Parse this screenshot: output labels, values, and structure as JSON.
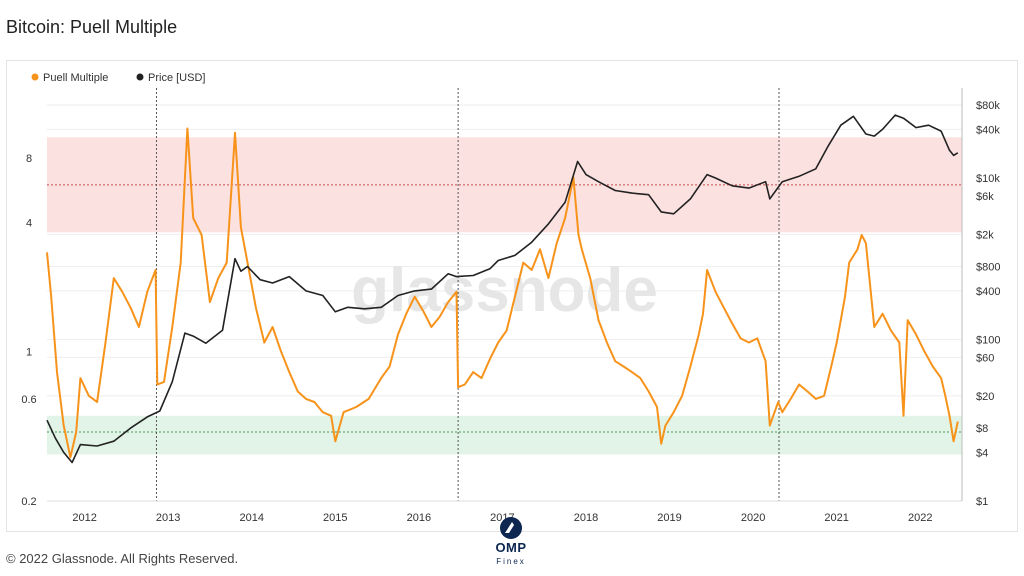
{
  "page": {
    "title": "Bitcoin: Puell Multiple",
    "footer": "© 2022 Glassnode. All Rights Reserved.",
    "watermark": "glassnode",
    "logo_text": "OMP",
    "logo_sub": "Finex"
  },
  "colors": {
    "puell": "#f7931a",
    "price": "#222222",
    "sell_zone": "#fbdcdc",
    "buy_zone": "#dff3e4",
    "grid": "#eeeeee",
    "halving_line": "#555555"
  },
  "chart_data": {
    "type": "line",
    "title": "Bitcoin: Puell Multiple",
    "legend": [
      "Puell Multiple",
      "Price [USD]"
    ],
    "legend_position": "top-left",
    "x_ticks": [
      "2012",
      "2013",
      "2014",
      "2015",
      "2016",
      "2017",
      "2018",
      "2019",
      "2020",
      "2021",
      "2022"
    ],
    "y_left_ticks": [
      {
        "value": 8,
        "label": "8"
      },
      {
        "value": 4,
        "label": "4"
      },
      {
        "value": 1,
        "label": "1"
      },
      {
        "value": 0.6,
        "label": "0.6"
      },
      {
        "value": 0.2,
        "label": "0.2"
      }
    ],
    "y_left_scale": "log",
    "y_left_range": [
      0.2,
      17
    ],
    "y_right_ticks": [
      {
        "value": 80000,
        "label": "$80k"
      },
      {
        "value": 40000,
        "label": "$40k"
      },
      {
        "value": 10000,
        "label": "$10k"
      },
      {
        "value": 6000,
        "label": "$6k"
      },
      {
        "value": 2000,
        "label": "$2k"
      },
      {
        "value": 800,
        "label": "$800"
      },
      {
        "value": 400,
        "label": "$400"
      },
      {
        "value": 100,
        "label": "$100"
      },
      {
        "value": 60,
        "label": "$60"
      },
      {
        "value": 20,
        "label": "$20"
      },
      {
        "value": 8,
        "label": "$8"
      },
      {
        "value": 4,
        "label": "$4"
      },
      {
        "value": 1,
        "label": "$1"
      }
    ],
    "y_right_scale": "log",
    "sell_zone": [
      3.6,
      10
    ],
    "sell_line": 6,
    "buy_zone": [
      0.33,
      0.5
    ],
    "buy_line": 0.42,
    "halvings": [
      2012.91,
      2016.52,
      2020.36
    ],
    "series": [
      {
        "name": "Puell Multiple",
        "x": [
          2011.6,
          2011.65,
          2011.72,
          2011.8,
          2011.88,
          2011.95,
          2012.0,
          2012.1,
          2012.2,
          2012.3,
          2012.4,
          2012.5,
          2012.6,
          2012.7,
          2012.8,
          2012.9,
          2012.92,
          2013.0,
          2013.1,
          2013.2,
          2013.28,
          2013.35,
          2013.45,
          2013.55,
          2013.65,
          2013.75,
          2013.85,
          2013.92,
          2014.0,
          2014.1,
          2014.2,
          2014.3,
          2014.4,
          2014.5,
          2014.6,
          2014.7,
          2014.8,
          2014.9,
          2015.0,
          2015.05,
          2015.15,
          2015.3,
          2015.45,
          2015.6,
          2015.7,
          2015.8,
          2015.9,
          2016.0,
          2016.1,
          2016.2,
          2016.3,
          2016.4,
          2016.5,
          2016.52,
          2016.6,
          2016.7,
          2016.8,
          2016.9,
          2017.0,
          2017.1,
          2017.2,
          2017.3,
          2017.4,
          2017.5,
          2017.6,
          2017.7,
          2017.8,
          2017.9,
          2017.96,
          2018.0,
          2018.1,
          2018.2,
          2018.3,
          2018.4,
          2018.5,
          2018.6,
          2018.7,
          2018.8,
          2018.9,
          2018.95,
          2019.0,
          2019.1,
          2019.2,
          2019.3,
          2019.4,
          2019.45,
          2019.5,
          2019.6,
          2019.7,
          2019.8,
          2019.9,
          2020.0,
          2020.1,
          2020.2,
          2020.25,
          2020.35,
          2020.4,
          2020.5,
          2020.6,
          2020.7,
          2020.8,
          2020.9,
          2021.0,
          2021.05,
          2021.1,
          2021.15,
          2021.2,
          2021.3,
          2021.35,
          2021.4,
          2021.5,
          2021.6,
          2021.7,
          2021.8,
          2021.85,
          2021.9,
          2022.0,
          2022.1,
          2022.2,
          2022.3,
          2022.35,
          2022.4,
          2022.45,
          2022.5
        ],
        "values": [
          2.9,
          1.8,
          0.8,
          0.45,
          0.32,
          0.42,
          0.75,
          0.62,
          0.58,
          1.1,
          2.2,
          1.9,
          1.6,
          1.3,
          1.9,
          2.4,
          0.7,
          0.72,
          1.3,
          2.6,
          11.0,
          4.2,
          3.5,
          1.7,
          2.2,
          2.6,
          10.5,
          3.8,
          2.6,
          1.6,
          1.1,
          1.3,
          1.0,
          0.8,
          0.65,
          0.6,
          0.58,
          0.52,
          0.5,
          0.38,
          0.52,
          0.55,
          0.6,
          0.75,
          0.85,
          1.2,
          1.5,
          1.8,
          1.55,
          1.3,
          1.45,
          1.7,
          1.9,
          0.68,
          0.7,
          0.8,
          0.75,
          0.92,
          1.1,
          1.25,
          1.8,
          2.6,
          2.4,
          3.0,
          2.2,
          3.2,
          4.2,
          6.5,
          3.5,
          3.0,
          2.2,
          1.4,
          1.1,
          0.9,
          0.85,
          0.8,
          0.75,
          0.65,
          0.55,
          0.37,
          0.45,
          0.52,
          0.62,
          0.85,
          1.2,
          1.5,
          2.4,
          1.9,
          1.6,
          1.35,
          1.15,
          1.1,
          1.15,
          0.9,
          0.45,
          0.58,
          0.52,
          0.6,
          0.7,
          0.65,
          0.6,
          0.62,
          0.9,
          1.1,
          1.4,
          1.8,
          2.6,
          3.0,
          3.5,
          3.2,
          1.3,
          1.5,
          1.25,
          1.1,
          0.5,
          1.4,
          1.2,
          1.0,
          0.85,
          0.75,
          0.62,
          0.5,
          0.38,
          0.47
        ]
      },
      {
        "name": "Price [USD]",
        "x": [
          2011.6,
          2011.7,
          2011.8,
          2011.9,
          2012.0,
          2012.2,
          2012.4,
          2012.6,
          2012.8,
          2012.95,
          2013.1,
          2013.25,
          2013.35,
          2013.5,
          2013.7,
          2013.85,
          2013.92,
          2014.0,
          2014.15,
          2014.3,
          2014.5,
          2014.7,
          2014.9,
          2015.05,
          2015.2,
          2015.4,
          2015.6,
          2015.8,
          2016.0,
          2016.2,
          2016.4,
          2016.5,
          2016.7,
          2016.9,
          2017.0,
          2017.2,
          2017.4,
          2017.6,
          2017.8,
          2017.95,
          2018.05,
          2018.2,
          2018.4,
          2018.6,
          2018.8,
          2018.95,
          2019.1,
          2019.3,
          2019.5,
          2019.6,
          2019.8,
          2020.0,
          2020.2,
          2020.25,
          2020.4,
          2020.6,
          2020.8,
          2020.95,
          2021.1,
          2021.25,
          2021.4,
          2021.5,
          2021.6,
          2021.75,
          2021.85,
          2022.0,
          2022.15,
          2022.3,
          2022.4,
          2022.45,
          2022.5
        ],
        "values": [
          10,
          6,
          4,
          3,
          5,
          4.8,
          5.5,
          8,
          11,
          13,
          30,
          120,
          110,
          90,
          130,
          1000,
          700,
          800,
          550,
          500,
          600,
          400,
          350,
          220,
          250,
          240,
          250,
          350,
          400,
          420,
          650,
          600,
          620,
          750,
          950,
          1100,
          1600,
          2700,
          5000,
          16000,
          11000,
          9000,
          7000,
          6500,
          6200,
          3800,
          3600,
          5500,
          11000,
          10000,
          8000,
          7500,
          9000,
          5500,
          9000,
          10500,
          13000,
          25000,
          45000,
          58000,
          35000,
          33000,
          40000,
          60000,
          55000,
          42000,
          45000,
          38000,
          22000,
          19000,
          20500
        ]
      }
    ]
  }
}
